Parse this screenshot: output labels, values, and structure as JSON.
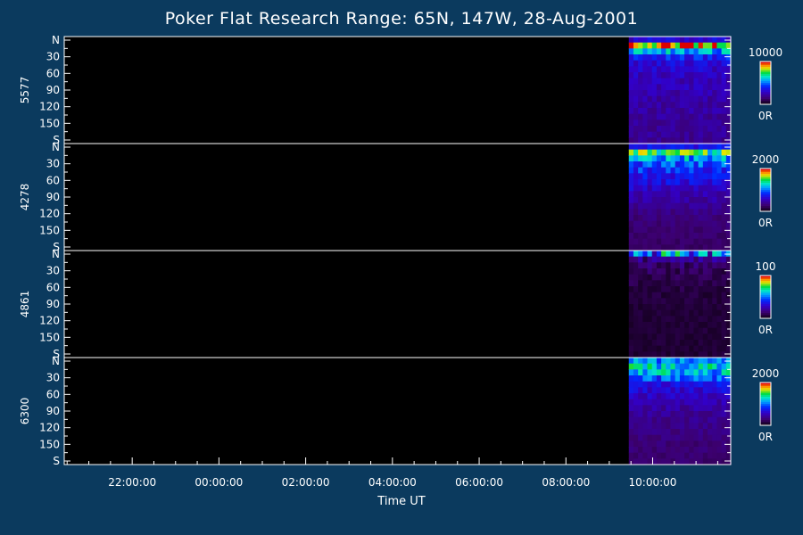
{
  "title": "Poker Flat Research Range: 65N, 147W, 28-Aug-2001",
  "chart_data": {
    "type": "heatmap",
    "title": "Poker Flat Research Range: 65N, 147W, 28-Aug-2001",
    "xlabel": "Time UT",
    "x_ticks": [
      "22:00:00",
      "00:00:00",
      "02:00:00",
      "04:00:00",
      "06:00:00",
      "08:00:00",
      "10:00:00"
    ],
    "x_range": [
      "20:26:00",
      "11:48:00"
    ],
    "data_start": "09:27:00",
    "y_ticks": [
      "N",
      "30",
      "60",
      "90",
      "120",
      "150",
      "S"
    ],
    "y_range": [
      0,
      180
    ],
    "panels": [
      {
        "name": "5577",
        "colorbar_max": "10000",
        "colorbar_min": "0R",
        "bright_band_deg": [
          5,
          15
        ],
        "profile": [
          0.3,
          0.92,
          0.55,
          0.38,
          0.3,
          0.28,
          0.26,
          0.25,
          0.24,
          0.23,
          0.22,
          0.21,
          0.21,
          0.2,
          0.2,
          0.19,
          0.19,
          0.18
        ]
      },
      {
        "name": "4278",
        "colorbar_max": "2000",
        "colorbar_min": "0R",
        "bright_band_deg": [
          5,
          20
        ],
        "profile": [
          0.35,
          0.72,
          0.55,
          0.46,
          0.4,
          0.36,
          0.32,
          0.28,
          0.24,
          0.21,
          0.18,
          0.16,
          0.14,
          0.13,
          0.12,
          0.12,
          0.11,
          0.11
        ]
      },
      {
        "name": "4861",
        "colorbar_max": "100",
        "colorbar_min": "0R",
        "bright_band_deg": [
          0,
          5
        ],
        "profile": [
          0.55,
          0.18,
          0.12,
          0.1,
          0.08,
          0.07,
          0.06,
          0.05,
          0.05,
          0.04,
          0.04,
          0.04,
          0.04,
          0.04,
          0.04,
          0.04,
          0.04,
          0.04
        ]
      },
      {
        "name": "6300",
        "colorbar_max": "2000",
        "colorbar_min": "0R",
        "bright_band_deg": [
          5,
          30
        ],
        "profile": [
          0.5,
          0.62,
          0.58,
          0.46,
          0.36,
          0.3,
          0.26,
          0.23,
          0.21,
          0.19,
          0.17,
          0.16,
          0.15,
          0.14,
          0.13,
          0.13,
          0.12,
          0.12
        ]
      }
    ]
  }
}
